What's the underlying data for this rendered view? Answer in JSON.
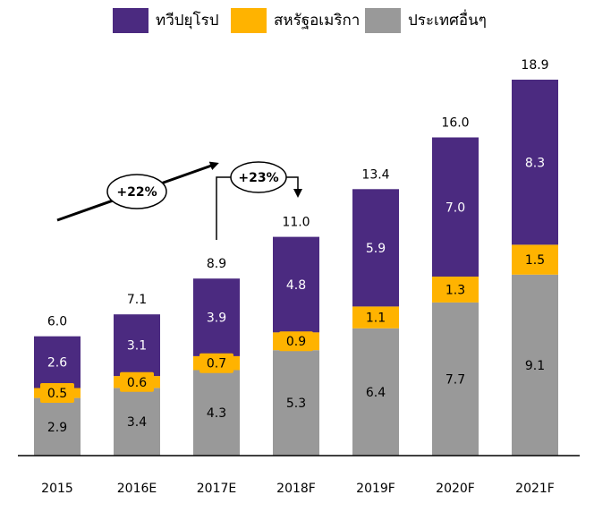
{
  "chart_data": {
    "type": "bar",
    "stacked": true,
    "categories": [
      "2015",
      "2016E",
      "2017E",
      "2018F",
      "2019F",
      "2020F",
      "2021F"
    ],
    "series": [
      {
        "name": "ประเทศอื่นๆ",
        "color": "#999999",
        "label_color": "#000000",
        "values": [
          2.9,
          3.4,
          4.3,
          5.3,
          6.4,
          7.7,
          9.1
        ]
      },
      {
        "name": "สหรัฐอเมริกา",
        "color": "#ffb300",
        "label_color": "#000000",
        "values": [
          0.5,
          0.6,
          0.7,
          0.9,
          1.1,
          1.3,
          1.5
        ]
      },
      {
        "name": "ทวีปยุโรป",
        "color": "#4b2a80",
        "label_color": "#ffffff",
        "values": [
          2.6,
          3.1,
          3.9,
          4.8,
          5.9,
          7.0,
          8.3
        ]
      }
    ],
    "totals": [
      "6.0",
      "7.1",
      "8.9",
      "11.0",
      "13.4",
      "16.0",
      "18.9"
    ],
    "value_labels": [
      [
        "2.9",
        "3.4",
        "4.3",
        "5.3",
        "6.4",
        "7.7",
        "9.1"
      ],
      [
        "0.5",
        "0.6",
        "0.7",
        "0.9",
        "1.1",
        "1.3",
        "1.5"
      ],
      [
        "2.6",
        "3.1",
        "3.9",
        "4.8",
        "5.9",
        "7.0",
        "8.3"
      ]
    ],
    "highlighted_labels": [
      {
        "series": 1,
        "category": 0
      },
      {
        "series": 1,
        "category": 1
      },
      {
        "series": 1,
        "category": 2
      },
      {
        "series": 1,
        "category": 3
      }
    ],
    "annotations": [
      {
        "text": "+22%",
        "from": "2015",
        "to": "2017E"
      },
      {
        "text": "+23%",
        "from": "2017E",
        "to": "2018F"
      }
    ],
    "legend_position": "top",
    "ylim": [
      0,
      20
    ]
  }
}
